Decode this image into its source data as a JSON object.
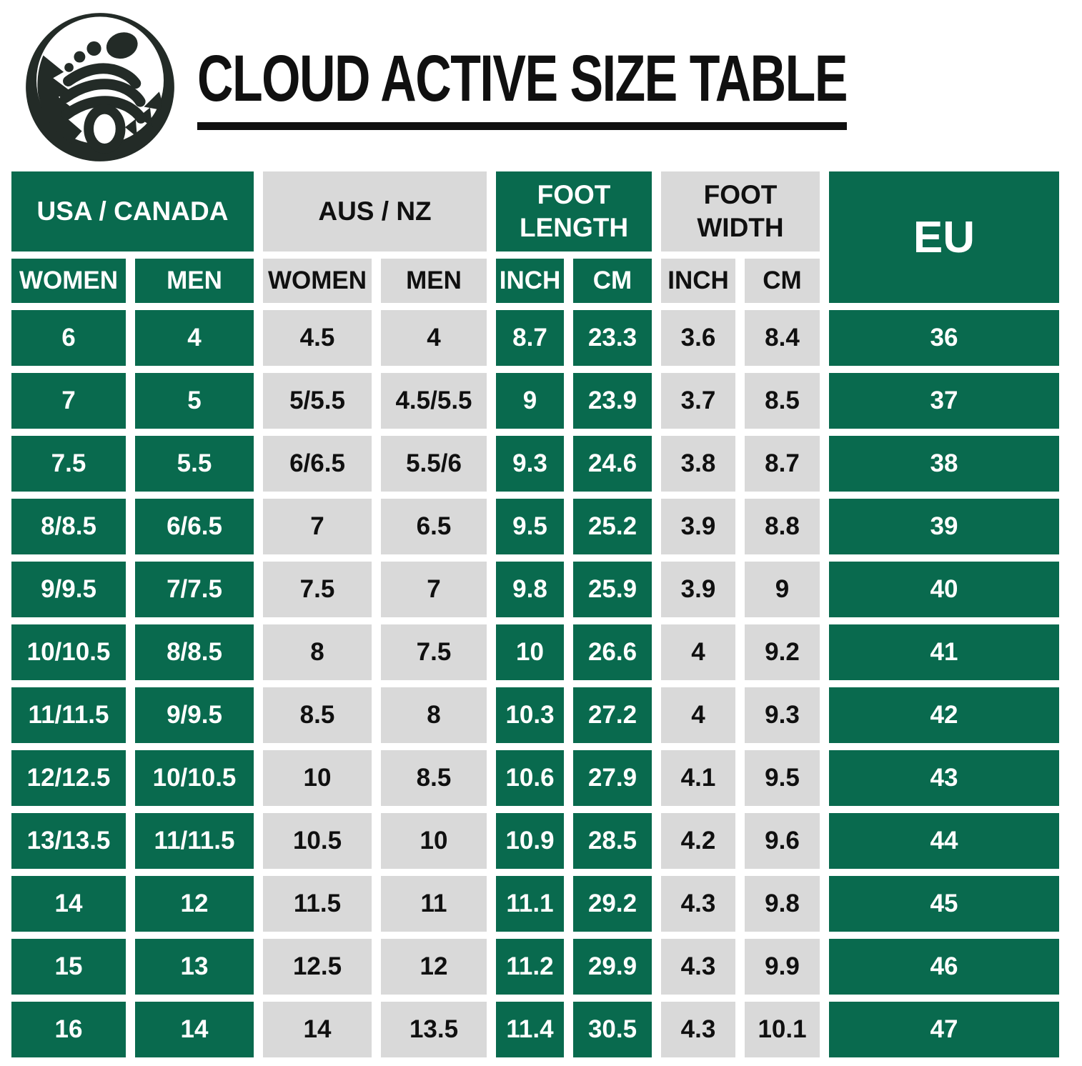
{
  "title": "CLOUD ACTIVE SIZE TABLE",
  "logo_name": "barefoot-mountain-logo",
  "colors": {
    "green": "#096a4e",
    "gray": "#d9d9d9",
    "text_dark": "#101010",
    "text_light": "#ffffff",
    "logo_dark": "#232b27"
  },
  "chart_data": {
    "type": "table",
    "title": "CLOUD ACTIVE SIZE TABLE",
    "column_groups": [
      {
        "label": "USA / CANADA",
        "theme": "green",
        "children": [
          "WOMEN",
          "MEN"
        ]
      },
      {
        "label": "AUS / NZ",
        "theme": "gray",
        "children": [
          "WOMEN",
          "MEN"
        ]
      },
      {
        "label": "FOOT LENGTH",
        "theme": "green",
        "children": [
          "INCH",
          "CM"
        ]
      },
      {
        "label": "FOOT WIDTH",
        "theme": "gray",
        "children": [
          "INCH",
          "CM"
        ]
      },
      {
        "label": "EU",
        "theme": "green",
        "children": []
      }
    ],
    "rows": [
      [
        "6",
        "4",
        "4.5",
        "4",
        "8.7",
        "23.3",
        "3.6",
        "8.4",
        "36"
      ],
      [
        "7",
        "5",
        "5/5.5",
        "4.5/5.5",
        "9",
        "23.9",
        "3.7",
        "8.5",
        "37"
      ],
      [
        "7.5",
        "5.5",
        "6/6.5",
        "5.5/6",
        "9.3",
        "24.6",
        "3.8",
        "8.7",
        "38"
      ],
      [
        "8/8.5",
        "6/6.5",
        "7",
        "6.5",
        "9.5",
        "25.2",
        "3.9",
        "8.8",
        "39"
      ],
      [
        "9/9.5",
        "7/7.5",
        "7.5",
        "7",
        "9.8",
        "25.9",
        "3.9",
        "9",
        "40"
      ],
      [
        "10/10.5",
        "8/8.5",
        "8",
        "7.5",
        "10",
        "26.6",
        "4",
        "9.2",
        "41"
      ],
      [
        "11/11.5",
        "9/9.5",
        "8.5",
        "8",
        "10.3",
        "27.2",
        "4",
        "9.3",
        "42"
      ],
      [
        "12/12.5",
        "10/10.5",
        "10",
        "8.5",
        "10.6",
        "27.9",
        "4.1",
        "9.5",
        "43"
      ],
      [
        "13/13.5",
        "11/11.5",
        "10.5",
        "10",
        "10.9",
        "28.5",
        "4.2",
        "9.6",
        "44"
      ],
      [
        "14",
        "12",
        "11.5",
        "11",
        "11.1",
        "29.2",
        "4.3",
        "9.8",
        "45"
      ],
      [
        "15",
        "13",
        "12.5",
        "12",
        "11.2",
        "29.9",
        "4.3",
        "9.9",
        "46"
      ],
      [
        "16",
        "14",
        "14",
        "13.5",
        "11.4",
        "30.5",
        "4.3",
        "10.1",
        "47"
      ]
    ]
  }
}
